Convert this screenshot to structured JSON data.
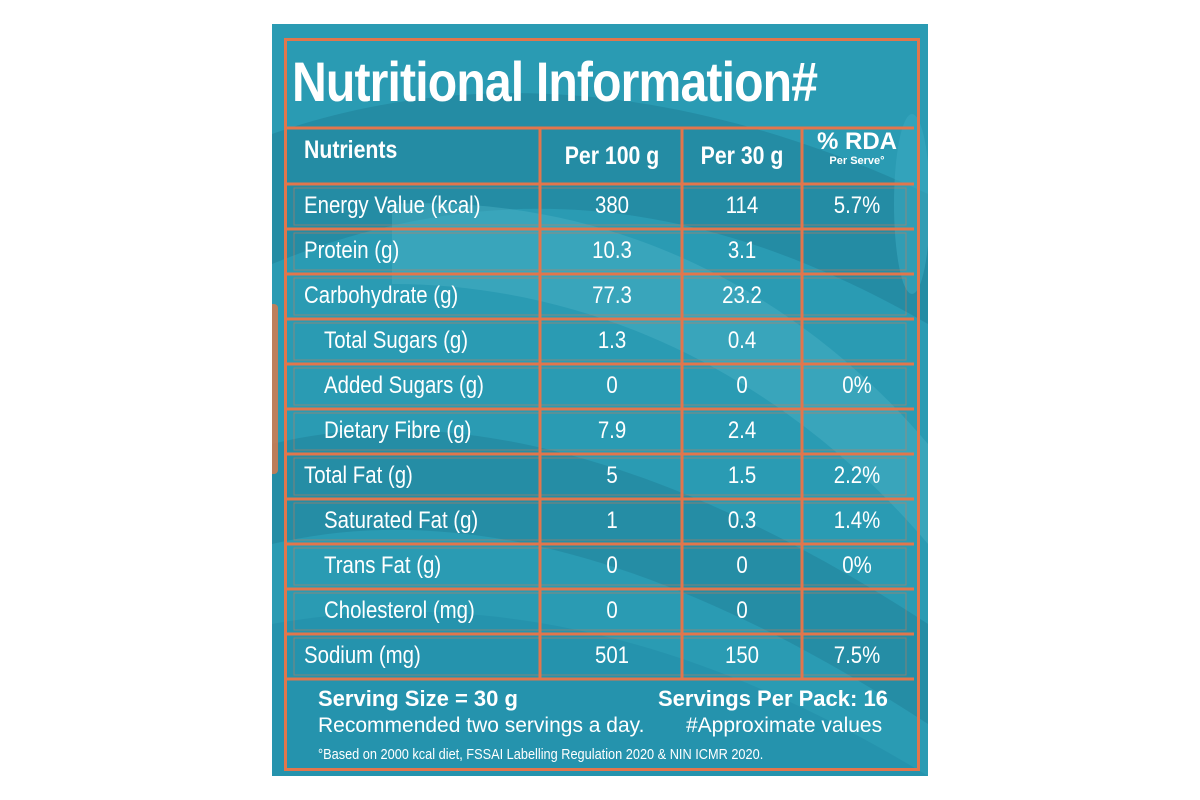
{
  "label": {
    "title": "Nutritional Information#",
    "columns": [
      "Nutrients",
      "Per 100 g",
      "Per 30 g"
    ],
    "rda_header": {
      "main": "% RDA",
      "sub": "Per Serve°"
    },
    "rows": [
      {
        "nutrient": "Energy Value (kcal)",
        "per100": "380",
        "per30": "114",
        "rda": "5.7%",
        "indent": false
      },
      {
        "nutrient": "Protein (g)",
        "per100": "10.3",
        "per30": "3.1",
        "rda": "",
        "indent": false
      },
      {
        "nutrient": "Carbohydrate (g)",
        "per100": "77.3",
        "per30": "23.2",
        "rda": "",
        "indent": false
      },
      {
        "nutrient": "Total Sugars (g)",
        "per100": "1.3",
        "per30": "0.4",
        "rda": "",
        "indent": true
      },
      {
        "nutrient": "Added Sugars (g)",
        "per100": "0",
        "per30": "0",
        "rda": "0%",
        "indent": true
      },
      {
        "nutrient": "Dietary Fibre (g)",
        "per100": "7.9",
        "per30": "2.4",
        "rda": "",
        "indent": true
      },
      {
        "nutrient": "Total Fat (g)",
        "per100": "5",
        "per30": "1.5",
        "rda": "2.2%",
        "indent": false
      },
      {
        "nutrient": "Saturated Fat (g)",
        "per100": "1",
        "per30": "0.3",
        "rda": "1.4%",
        "indent": true
      },
      {
        "nutrient": "Trans Fat (g)",
        "per100": "0",
        "per30": "0",
        "rda": "0%",
        "indent": true
      },
      {
        "nutrient": "Cholesterol (mg)",
        "per100": "0",
        "per30": "0",
        "rda": "",
        "indent": true
      },
      {
        "nutrient": "Sodium (mg)",
        "per100": "501",
        "per30": "150",
        "rda": "7.5%",
        "indent": false
      }
    ],
    "footer": {
      "serving_size": "Serving Size = 30 g",
      "servings_per_pack": "Servings Per Pack: 16",
      "recommendation": "Recommended two servings a day.",
      "approx_note": "#Approximate values",
      "rda_note": "°Based on 2000 kcal diet, FSSAI Labelling Regulation 2020 & NIN ICMR 2020."
    }
  },
  "colors": {
    "background": "#2a9bb3",
    "swirl_dark": "#1f7f98",
    "swirl_light": "#4cb2c6",
    "border": "#e2764c",
    "text": "#ffffff"
  }
}
